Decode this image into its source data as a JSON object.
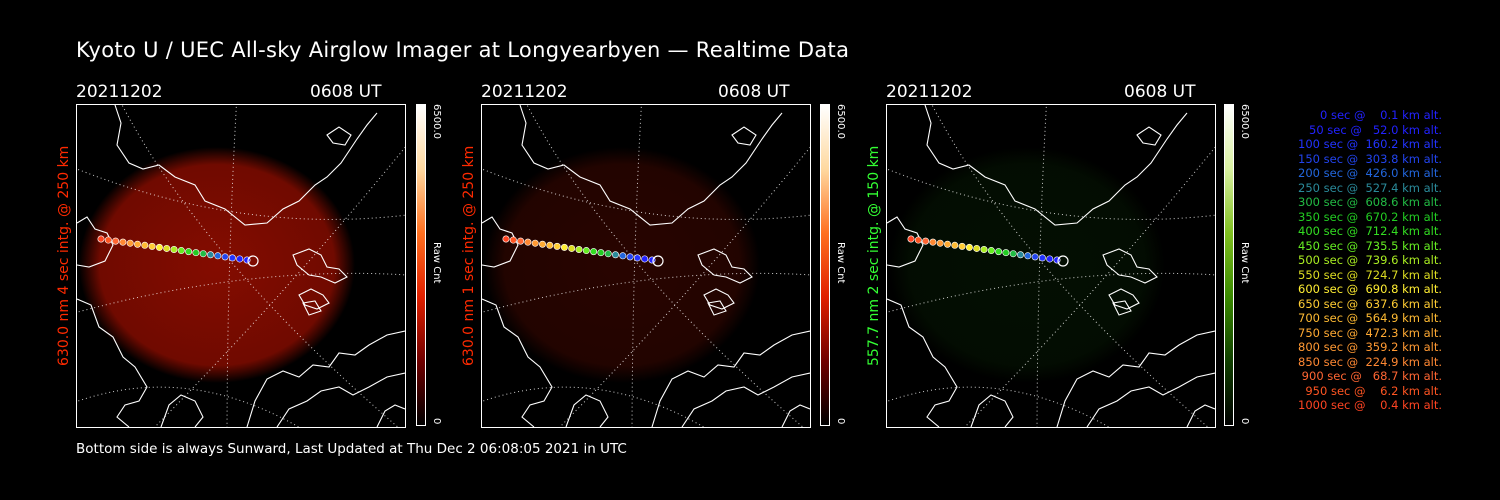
{
  "title": "Kyoto U / UEC All-sky Airglow Imager at Longyearbyen — Realtime Data",
  "footer": "Bottom side is always Sunward, Last Updated at Thu Dec  2 06:08:05 2021 in UTC",
  "panels": [
    {
      "date": "20211202",
      "time": "0608 UT",
      "ylabel": "630.0 nm 4 sec intg. @ 250 km",
      "ylabel_color": "#ff2a00",
      "cbar_max": "6500.0",
      "cbar_min": "0",
      "cbar_unit": "Raw Cnt",
      "glow_color": "#b01000",
      "glow_opacity": 0.75,
      "cbar_gradient": [
        "#ffffff",
        "#ffd9a0",
        "#ff7020",
        "#e02000",
        "#700000",
        "#000000"
      ]
    },
    {
      "date": "20211202",
      "time": "0608 UT",
      "ylabel": "630.0 nm 1 sec intg. @ 250 km",
      "ylabel_color": "#ff2a00",
      "cbar_max": "6500.0",
      "cbar_min": "0",
      "cbar_unit": "Raw Cnt",
      "glow_color": "#5a0a00",
      "glow_opacity": 0.45,
      "cbar_gradient": [
        "#ffffff",
        "#ffd9a0",
        "#ff7020",
        "#e02000",
        "#700000",
        "#000000"
      ]
    },
    {
      "date": "20211202",
      "time": "0608 UT",
      "ylabel": "557.7 nm 2 sec intg. @ 150 km",
      "ylabel_color": "#33ff33",
      "cbar_max": "6500.0",
      "cbar_min": "0",
      "cbar_unit": "Raw Cnt",
      "glow_color": "#0a2a05",
      "glow_opacity": 0.35,
      "cbar_gradient": [
        "#ffffff",
        "#d9f0a0",
        "#80c020",
        "#3a8a00",
        "#104000",
        "#000000"
      ]
    }
  ],
  "legend": [
    {
      "text": "   0 sec @    0.1 km alt.",
      "color": "#2222ff"
    },
    {
      "text": "  50 sec @   52.0 km alt.",
      "color": "#2222ff"
    },
    {
      "text": " 100 sec @  160.2 km alt.",
      "color": "#2233ff"
    },
    {
      "text": " 150 sec @  303.8 km alt.",
      "color": "#2244ee"
    },
    {
      "text": " 200 sec @  426.0 km alt.",
      "color": "#2266dd"
    },
    {
      "text": " 250 sec @  527.4 km alt.",
      "color": "#2a8a9a"
    },
    {
      "text": " 300 sec @  608.6 km alt.",
      "color": "#22bb44"
    },
    {
      "text": " 350 sec @  670.2 km alt.",
      "color": "#22cc22"
    },
    {
      "text": " 400 sec @  712.4 km alt.",
      "color": "#33dd22"
    },
    {
      "text": " 450 sec @  735.5 km alt.",
      "color": "#66ee22"
    },
    {
      "text": " 500 sec @  739.6 km alt.",
      "color": "#aaee22"
    },
    {
      "text": " 550 sec @  724.7 km alt.",
      "color": "#dddd22"
    },
    {
      "text": " 600 sec @  690.8 km alt.",
      "color": "#ffee33"
    },
    {
      "text": " 650 sec @  637.6 km alt.",
      "color": "#ffcc33"
    },
    {
      "text": " 700 sec @  564.9 km alt.",
      "color": "#ffbb33"
    },
    {
      "text": " 750 sec @  472.3 km alt.",
      "color": "#ffaa33"
    },
    {
      "text": " 800 sec @  359.2 km alt.",
      "color": "#ff9933"
    },
    {
      "text": " 850 sec @  224.9 km alt.",
      "color": "#ff8833"
    },
    {
      "text": " 900 sec @   68.7 km alt.",
      "color": "#ff6633"
    },
    {
      "text": " 950 sec @    6.2 km alt.",
      "color": "#ff5522"
    },
    {
      "text": "1000 sec @    0.4 km alt.",
      "color": "#ff4422"
    }
  ]
}
